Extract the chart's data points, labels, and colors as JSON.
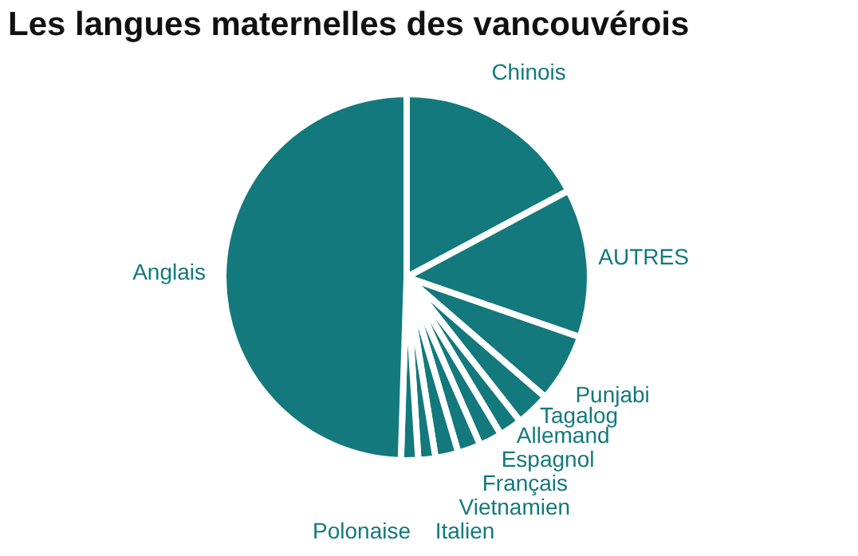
{
  "chart_data": {
    "type": "pie",
    "title": "Les langues maternelles des vancouvérois",
    "categories": [
      "Chinois",
      "AUTRES",
      "Punjabi",
      "Tagalog",
      "Allemand",
      "Espagnol",
      "Français",
      "Vietnamien",
      "Italien",
      "Polonaise",
      "Anglais"
    ],
    "values": [
      17,
      13,
      6,
      3,
      2,
      2,
      2,
      2,
      1.5,
      1.5,
      49
    ],
    "colors": [
      "#13797c",
      "#13797c",
      "#13797c",
      "#13797c",
      "#13797c",
      "#13797c",
      "#13797c",
      "#13797c",
      "#13797c",
      "#13797c",
      "#13797c"
    ],
    "legend": false
  }
}
